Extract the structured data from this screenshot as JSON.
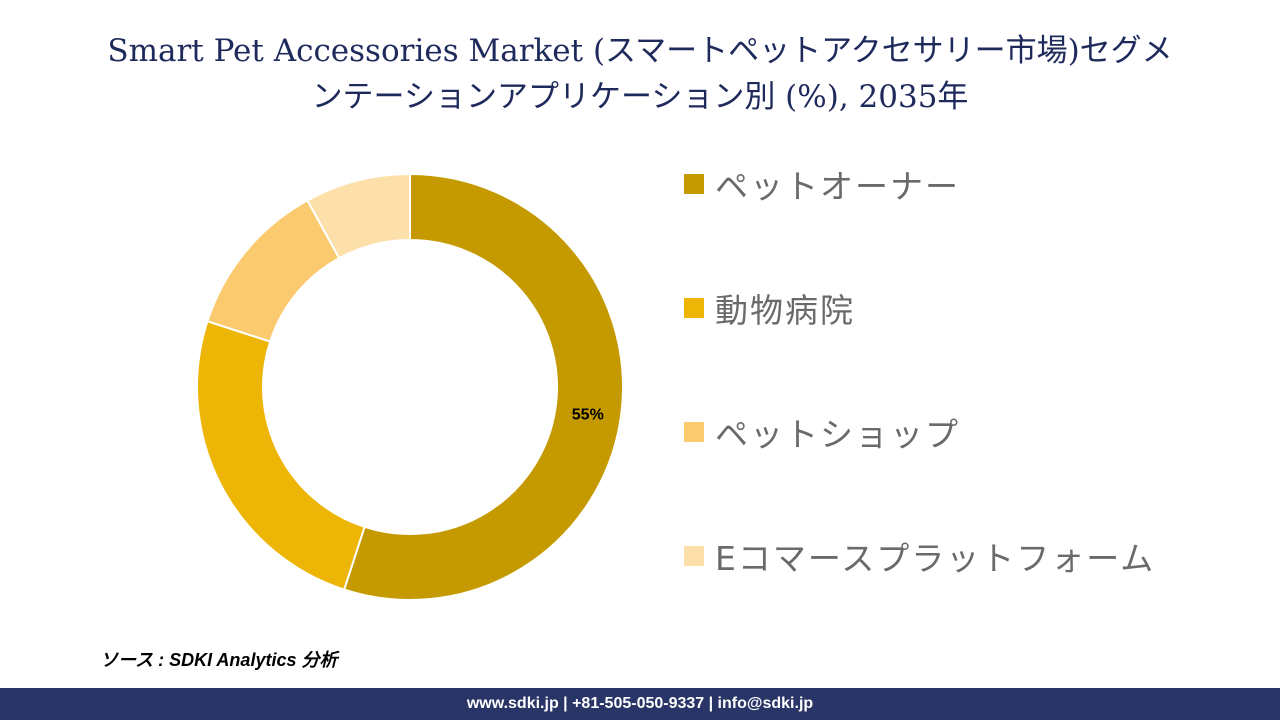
{
  "title": {
    "line1": "Smart Pet Accessories Market (スマートペットアクセサリー市場)セグメ",
    "line2": "ンテーションアプリケーション別 (%), 2035年"
  },
  "chart_data": {
    "type": "pie",
    "donut": true,
    "categories": [
      "ペットオーナー",
      "動物病院",
      "ペットショップ",
      "Eコマースプラットフォーム"
    ],
    "values": [
      55,
      25,
      12,
      8
    ],
    "colors": [
      "#c49a00",
      "#edb506",
      "#fbc96e",
      "#fde0a9"
    ],
    "data_labels": [
      "55%",
      "",
      "",
      ""
    ],
    "legend_position": "right"
  },
  "source": "ソース : SDKI Analytics 分析",
  "footer": "www.sdki.jp | +81-505-050-9337 | info@sdki.jp"
}
